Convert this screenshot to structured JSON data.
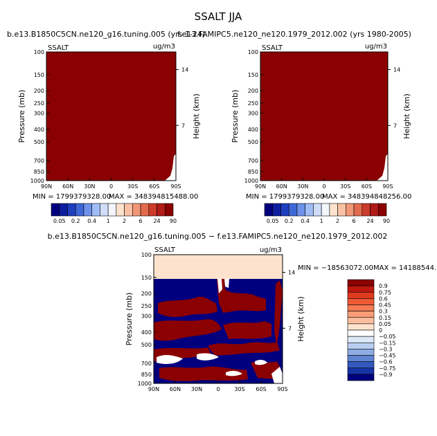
{
  "figure": {
    "title": "SSALT JJA"
  },
  "colors": {
    "dark_red": "#8b0000",
    "navy": "#00007f",
    "peach": "#fde3cd",
    "white": "#ffffff"
  },
  "chart_data": [
    {
      "type": "heatmap",
      "panel": "top-left",
      "title": "b.e13.B1850C5CN.ne120_g16.tuning.005 (yrs 1-24)",
      "field_label": "SSALT",
      "units": "ug/m3",
      "ylabel": "Pressure (mb)",
      "ylabel_right": "Height (km)",
      "x_ticks": [
        "90N",
        "60N",
        "30N",
        "0",
        "30S",
        "60S",
        "90S"
      ],
      "y_ticks": [
        "100",
        "150",
        "200",
        "250",
        "300",
        "400",
        "500",
        "700",
        "850",
        "1000"
      ],
      "y_ticks_right": [
        "14",
        "7"
      ],
      "min_label": "MIN = 1799379328.00",
      "max_label": "MAX = 348394815488.00"
    },
    {
      "type": "heatmap",
      "panel": "top-right",
      "title": "f.e13.FAMIPC5.ne120_ne120.1979_2012.002 (yrs 1980-2005)",
      "field_label": "SSALT",
      "units": "ug/m3",
      "ylabel": "Pressure (mb)",
      "ylabel_right": "Height (km)",
      "x_ticks": [
        "90N",
        "60N",
        "30N",
        "0",
        "30S",
        "60S",
        "90S"
      ],
      "y_ticks": [
        "100",
        "150",
        "200",
        "250",
        "300",
        "400",
        "500",
        "700",
        "850",
        "1000"
      ],
      "y_ticks_right": [
        "14",
        "7"
      ],
      "min_label": "MIN = 1799379328.00",
      "max_label": "MAX = 348394848256.00"
    },
    {
      "type": "heatmap",
      "panel": "bottom-difference",
      "title": "b.e13.B1850C5CN.ne120_g16.tuning.005 − f.e13.FAMIPC5.ne120_ne120.1979_2012.002",
      "field_label": "SSALT",
      "units": "ug/m3",
      "ylabel": "Pressure (mb)",
      "ylabel_right": "Height (km)",
      "x_ticks": [
        "90N",
        "60N",
        "30N",
        "0",
        "30S",
        "60S",
        "90S"
      ],
      "y_ticks": [
        "100",
        "150",
        "200",
        "250",
        "300",
        "400",
        "500",
        "700",
        "850",
        "1000"
      ],
      "y_ticks_right": [
        "14",
        "7"
      ],
      "min_label": "MIN = −18563072.00",
      "max_label": "MAX = 14188544."
    }
  ],
  "colorbar_top": {
    "labels": [
      "0.05",
      "0.2",
      "0.4",
      "1",
      "2",
      "6",
      "24",
      "90"
    ],
    "colors": [
      "#00007f",
      "#0c1e9f",
      "#1f3fbf",
      "#3f67d7",
      "#6e92e9",
      "#9fbcf5",
      "#cfddf9",
      "#f3f6fb",
      "#fde3cd",
      "#f9c1a4",
      "#f19777",
      "#e26b4e",
      "#cc3b2b",
      "#b01c17",
      "#8b0000"
    ]
  },
  "colorbar_diff": {
    "labels": [
      "0.9",
      "0.75",
      "0.6",
      "0.45",
      "0.3",
      "0.15",
      "0.05",
      "0",
      "−0.05",
      "−0.15",
      "−0.3",
      "−0.45",
      "−0.6",
      "−0.75",
      "−0.9"
    ],
    "colors": [
      "#8b0000",
      "#c0180e",
      "#df3a1e",
      "#ef5a35",
      "#f47b52",
      "#f89d77",
      "#fbbf9e",
      "#fde3cd",
      "#ffffff",
      "#dde8f7",
      "#b8cdf0",
      "#8eace4",
      "#5e84d2",
      "#3358bf",
      "#1632a5",
      "#00007f"
    ]
  }
}
